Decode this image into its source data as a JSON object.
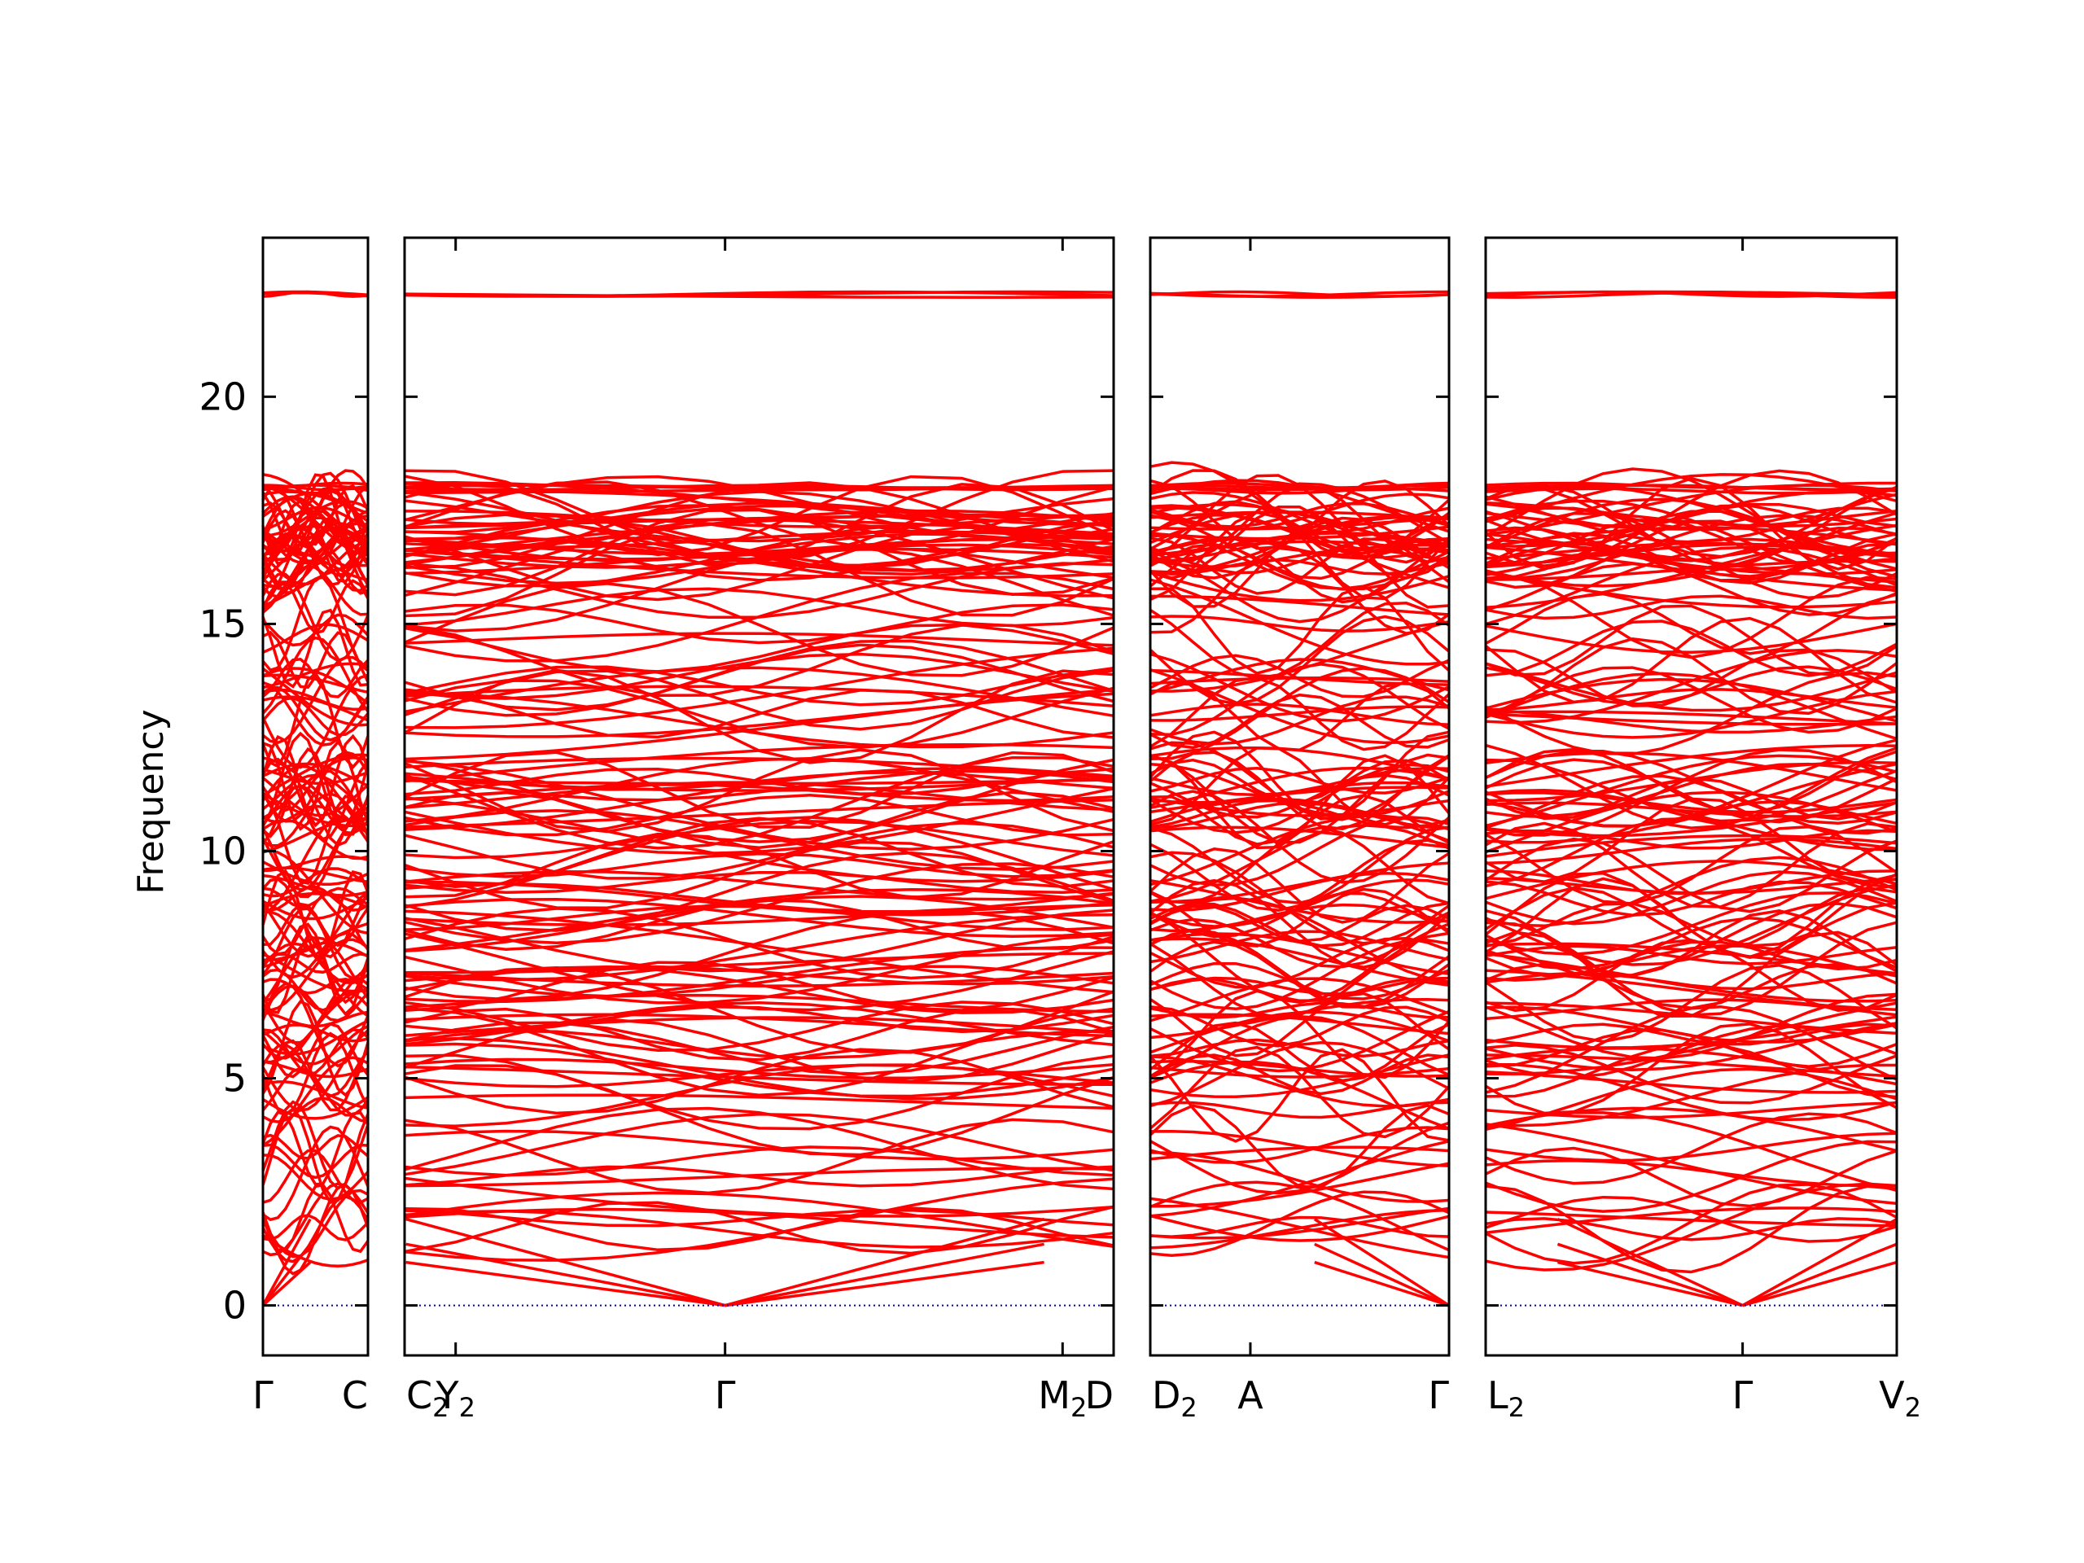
{
  "chart_data": {
    "type": "line",
    "title": "",
    "ylabel": "Frequency",
    "ylim": [
      -1.1,
      23.5
    ],
    "yticks": [
      0,
      5,
      10,
      15,
      20
    ],
    "colors": {
      "bands": "#ff0000",
      "zero_line": "#0000cc",
      "axes": "#000000"
    },
    "grid": false,
    "segments": [
      {
        "name": "Γ–C",
        "start_label": "Γ",
        "end_label": "C",
        "mid_labels": []
      },
      {
        "name": "C2–Y2–Γ–M2–D",
        "start_label": "C2",
        "end_label": "D",
        "mid_labels": [
          {
            "label": "Y2",
            "pos": 0.072
          },
          {
            "label": "Γ",
            "pos": 0.452
          },
          {
            "label": "M2",
            "pos": 0.928
          }
        ]
      },
      {
        "name": "D2–A–Γ",
        "start_label": "D2",
        "end_label": "Γ",
        "mid_labels": [
          {
            "label": "A",
            "pos": 0.335
          }
        ]
      },
      {
        "name": "L2–Γ–V2",
        "start_label": "L2",
        "end_label": "V2",
        "mid_labels": [
          {
            "label": "Γ",
            "pos": 0.625
          }
        ]
      }
    ],
    "high_symmetry_labels": [
      "Γ",
      "C",
      "C2",
      "Y2",
      "Γ",
      "M2",
      "D",
      "D2",
      "A",
      "Γ",
      "L2",
      "Γ",
      "V2"
    ],
    "band_levels": {
      "top_flat": 22.25,
      "upper_group": [
        17.9,
        18.05
      ],
      "dense_upper": [
        16.0,
        17.6
      ],
      "acoustic_zero": 0
    },
    "band_count_estimate": 160
  }
}
